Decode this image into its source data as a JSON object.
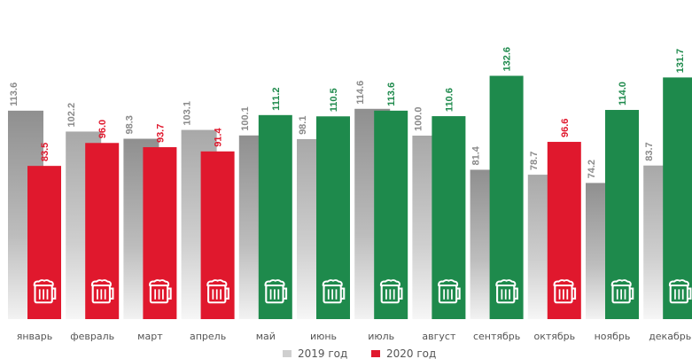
{
  "chart_data": {
    "type": "bar",
    "categories": [
      "январь",
      "февраль",
      "март",
      "апрель",
      "май",
      "июнь",
      "июль",
      "август",
      "сентябрь",
      "октябрь",
      "ноябрь",
      "декабрь"
    ],
    "series": [
      {
        "name": "2019 год",
        "values": [
          113.6,
          102.2,
          98.3,
          103.1,
          100.1,
          98.1,
          114.6,
          100.0,
          81.4,
          78.7,
          74.2,
          83.7
        ]
      },
      {
        "name": "2020 год",
        "values": [
          83.5,
          96.0,
          93.7,
          91.4,
          111.2,
          110.5,
          113.6,
          110.6,
          132.6,
          96.6,
          114.0,
          131.7
        ]
      }
    ],
    "series_value_labels": [
      [
        "113.6",
        "102.2",
        "98.3",
        "103.1",
        "100.1",
        "98.1",
        "114.6",
        "100.0",
        "81.4",
        "78.7",
        "74.2",
        "83.7"
      ],
      [
        "83.5",
        "96.0",
        "93.7",
        "91.4",
        "111.2",
        "110.5",
        "113.6",
        "110.6",
        "132.6",
        "96.6",
        "114.0",
        "131.7"
      ]
    ],
    "bar_colors_2020": [
      "#e0182d",
      "#e0182d",
      "#e0182d",
      "#e0182d",
      "#1e8a4c",
      "#1e8a4c",
      "#1e8a4c",
      "#1e8a4c",
      "#1e8a4c",
      "#e0182d",
      "#1e8a4c",
      "#1e8a4c"
    ],
    "colors": {
      "series_2019": "#9a9a9a",
      "red": "#e0182d",
      "green": "#1e8a4c",
      "label_2019": "#8a8a8a"
    },
    "ylim": [
      0,
      140
    ],
    "grid": false,
    "legend_position": "bottom-center",
    "bar_icon": "beer-mug-icon"
  }
}
